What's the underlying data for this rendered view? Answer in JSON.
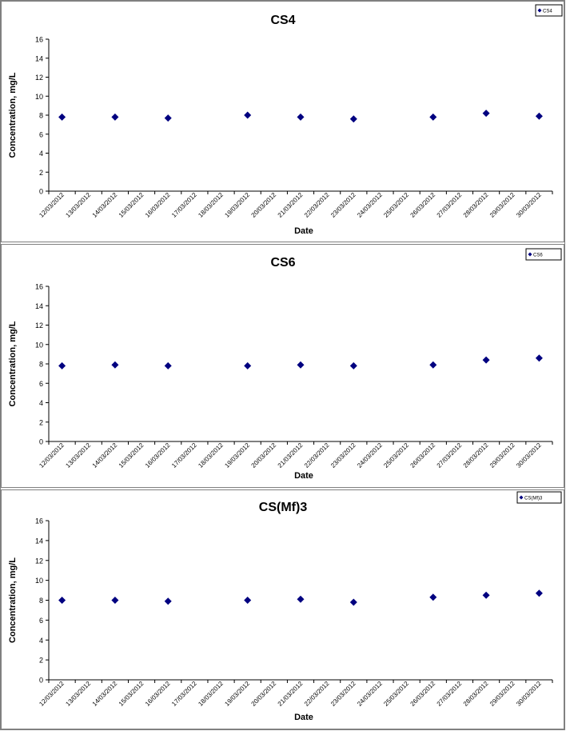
{
  "chart_data": [
    {
      "type": "scatter",
      "title": "CS4",
      "xlabel": "Date",
      "ylabel": "Concentration, mg/L",
      "ylim": [
        0,
        16
      ],
      "y_ticks": [
        "0",
        "2",
        "4",
        "6",
        "8",
        "10",
        "12",
        "14",
        "16"
      ],
      "x_ticks": [
        "12/03/2012",
        "13/03/2012",
        "14/03/2012",
        "15/03/2012",
        "16/03/2012",
        "17/03/2012",
        "18/03/2012",
        "19/03/2012",
        "20/03/2012",
        "21/03/2012",
        "22/03/2012",
        "23/03/2012",
        "24/03/2012",
        "25/03/2012",
        "26/03/2012",
        "27/03/2012",
        "28/03/2012",
        "29/03/2012",
        "30/03/2012"
      ],
      "grid": false,
      "legend_position": "top-right",
      "series": [
        {
          "name": "CS4",
          "color": "#000080",
          "marker": "diamond",
          "x": [
            "12/03/2012",
            "14/03/2012",
            "16/03/2012",
            "19/03/2012",
            "21/03/2012",
            "23/03/2012",
            "26/03/2012",
            "28/03/2012",
            "30/03/2012"
          ],
          "y": [
            7.8,
            7.8,
            7.7,
            8.0,
            7.8,
            7.6,
            7.8,
            8.2,
            7.9
          ]
        }
      ]
    },
    {
      "type": "scatter",
      "title": "CS6",
      "xlabel": "Date",
      "ylabel": "Concentration, mg/L",
      "ylim": [
        0,
        16
      ],
      "y_ticks": [
        "0",
        "2",
        "4",
        "6",
        "8",
        "10",
        "12",
        "14",
        "16"
      ],
      "x_ticks": [
        "12/03/2012",
        "13/03/2012",
        "14/03/2012",
        "15/03/2012",
        "16/03/2012",
        "17/03/2012",
        "18/03/2012",
        "19/03/2012",
        "20/03/2012",
        "21/03/2012",
        "22/03/2012",
        "23/03/2012",
        "24/03/2012",
        "25/03/2012",
        "26/03/2012",
        "27/03/2012",
        "28/03/2012",
        "29/03/2012",
        "30/03/2012"
      ],
      "grid": false,
      "legend_position": "top-right",
      "series": [
        {
          "name": "CS6",
          "color": "#000080",
          "marker": "diamond",
          "x": [
            "12/03/2012",
            "14/03/2012",
            "16/03/2012",
            "19/03/2012",
            "21/03/2012",
            "23/03/2012",
            "26/03/2012",
            "28/03/2012",
            "30/03/2012"
          ],
          "y": [
            7.8,
            7.9,
            7.8,
            7.8,
            7.9,
            7.8,
            7.9,
            8.4,
            8.6
          ]
        }
      ]
    },
    {
      "type": "scatter",
      "title": "CS(Mf)3",
      "xlabel": "Date",
      "ylabel": "Concentration, mg/L",
      "ylim": [
        0,
        16
      ],
      "y_ticks": [
        "0",
        "2",
        "4",
        "6",
        "8",
        "10",
        "12",
        "14",
        "16"
      ],
      "x_ticks": [
        "12/03/2012",
        "13/03/2012",
        "14/03/2012",
        "15/03/2012",
        "16/03/2012",
        "17/03/2012",
        "18/03/2012",
        "19/03/2012",
        "20/03/2012",
        "21/03/2012",
        "22/03/2012",
        "23/03/2012",
        "24/03/2012",
        "25/03/2012",
        "26/03/2012",
        "27/03/2012",
        "28/03/2012",
        "29/03/2012",
        "30/03/2012"
      ],
      "grid": false,
      "legend_position": "top-right",
      "series": [
        {
          "name": "CS(Mf)3",
          "color": "#000080",
          "marker": "diamond",
          "x": [
            "12/03/2012",
            "14/03/2012",
            "16/03/2012",
            "19/03/2012",
            "21/03/2012",
            "23/03/2012",
            "26/03/2012",
            "28/03/2012",
            "30/03/2012"
          ],
          "y": [
            8.0,
            8.0,
            7.9,
            8.0,
            8.1,
            7.8,
            8.3,
            8.5,
            8.7
          ]
        }
      ]
    }
  ]
}
